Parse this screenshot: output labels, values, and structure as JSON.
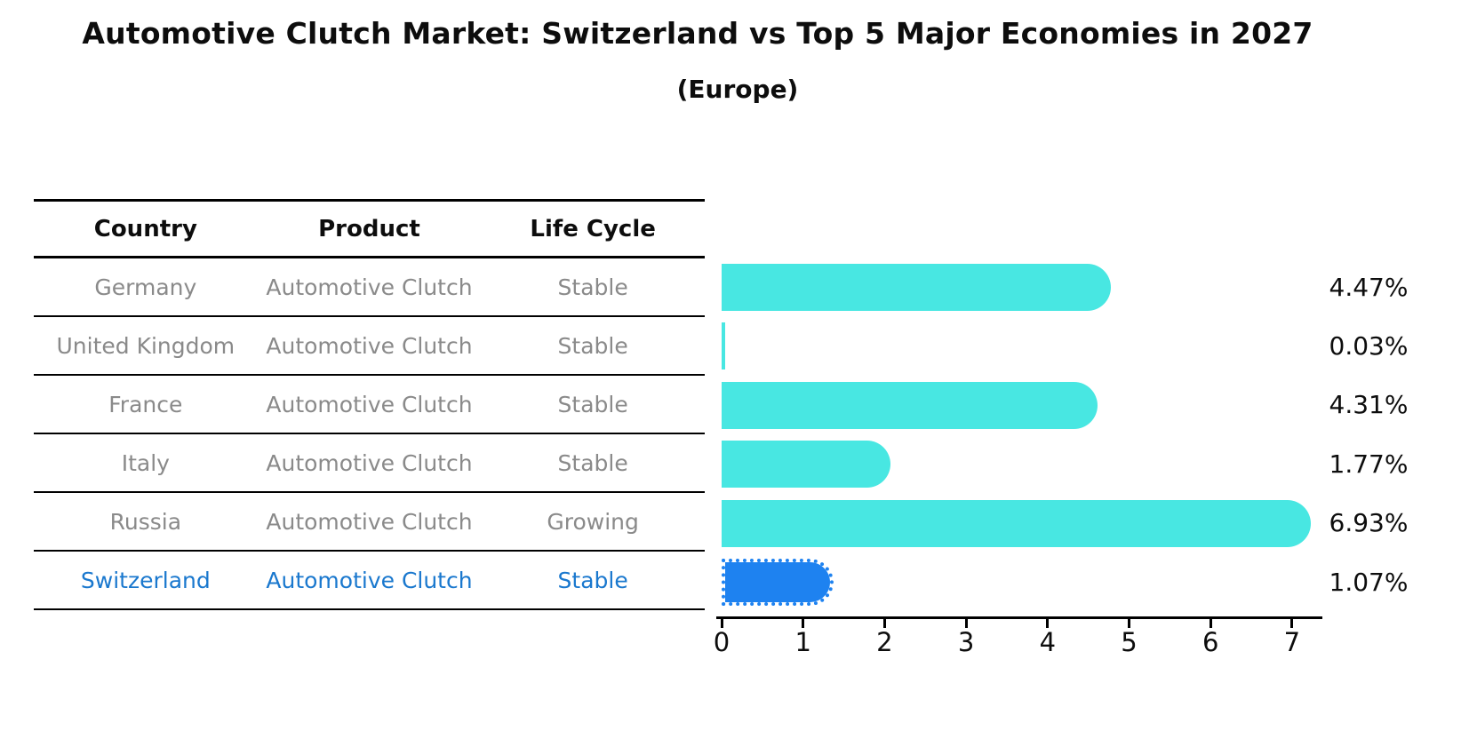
{
  "title": "Automotive Clutch Market: Switzerland vs Top 5 Major Economies in 2027",
  "subtitle": "(Europe)",
  "table": {
    "headers": [
      "Country",
      "Product",
      "Life Cycle"
    ],
    "rows": [
      {
        "country": "Germany",
        "product": "Automotive Clutch",
        "life_cycle": "Stable",
        "highlight": false
      },
      {
        "country": "United Kingdom",
        "product": "Automotive Clutch",
        "life_cycle": "Stable",
        "highlight": false
      },
      {
        "country": "France",
        "product": "Automotive Clutch",
        "life_cycle": "Stable",
        "highlight": false
      },
      {
        "country": "Italy",
        "product": "Automotive Clutch",
        "life_cycle": "Stable",
        "highlight": false
      },
      {
        "country": "Russia",
        "product": "Automotive Clutch",
        "life_cycle": "Growing",
        "highlight": false
      },
      {
        "country": "Switzerland",
        "product": "Automotive Clutch",
        "life_cycle": "Stable",
        "highlight": true
      }
    ]
  },
  "chart_data": {
    "type": "bar",
    "orientation": "horizontal",
    "title": "Automotive Clutch Market: Switzerland vs Top 5 Major Economies in 2027",
    "subtitle": "(Europe)",
    "categories": [
      "Germany",
      "United Kingdom",
      "France",
      "Italy",
      "Russia",
      "Switzerland"
    ],
    "values": [
      4.47,
      0.03,
      4.31,
      1.77,
      6.93,
      1.07
    ],
    "value_labels": [
      "4.47%",
      "0.03%",
      "4.31%",
      "1.77%",
      "6.93%",
      "1.07%"
    ],
    "highlight_index": 5,
    "xlim": [
      0,
      7.4
    ],
    "xticks": [
      0,
      1,
      2,
      3,
      4,
      5,
      6,
      7
    ],
    "grid": false,
    "legend": false,
    "bar_color": "#48e7e2",
    "highlight_color": "#1e82f0",
    "highlight_text_color": "#1a78ce",
    "text_color": "#8a8a8a"
  }
}
